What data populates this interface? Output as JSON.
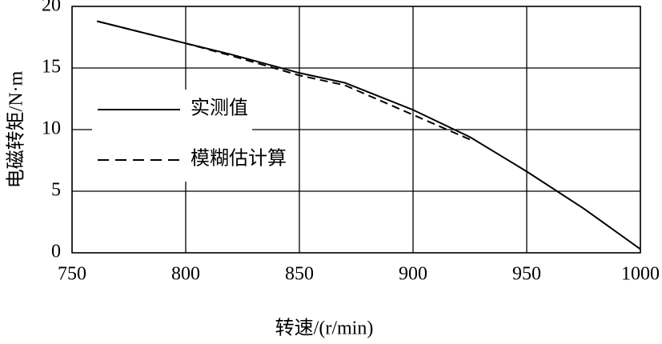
{
  "chart_data": {
    "type": "line",
    "xlabel": "转速/(r/min)",
    "ylabel": "电磁转矩/N·m",
    "xlim": [
      750,
      1000
    ],
    "xticks": [
      750,
      800,
      850,
      900,
      950,
      1000
    ],
    "ylim": [
      0,
      20
    ],
    "yticks": [
      0,
      5,
      10,
      15,
      20
    ],
    "grid": true,
    "series": [
      {
        "name": "实测值",
        "color": "#000000",
        "dash": false,
        "x": [
          761,
          800,
          820,
          850,
          870,
          900,
          925,
          950,
          975,
          1000
        ],
        "values": [
          18.8,
          17.0,
          16.1,
          14.6,
          13.8,
          11.6,
          9.4,
          6.6,
          3.6,
          0.3
        ]
      },
      {
        "name": "模糊估计算",
        "color": "#000000",
        "dash": true,
        "x": [
          761,
          800,
          820,
          850,
          870,
          900,
          925
        ],
        "values": [
          18.8,
          17.0,
          16.0,
          14.4,
          13.6,
          11.2,
          9.2
        ]
      }
    ]
  }
}
